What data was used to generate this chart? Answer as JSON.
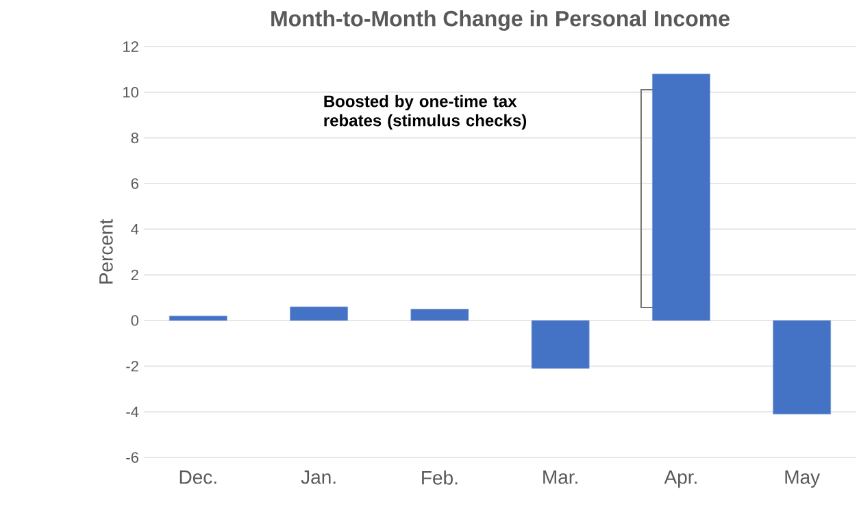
{
  "chart_data": {
    "type": "bar",
    "title": "Month-to-Month Change in Personal Income",
    "ylabel": "Percent",
    "categories": [
      "Dec.",
      "Jan.",
      "Feb.",
      "Mar.",
      "Apr.",
      "May"
    ],
    "values": [
      0.2,
      0.6,
      0.5,
      -2.1,
      10.8,
      -4.1
    ],
    "color": "#4472c4",
    "ylim": [
      -6,
      12
    ],
    "yticks": [
      -6,
      -4,
      -2,
      0,
      2,
      4,
      6,
      8,
      10,
      12
    ],
    "grid": "y",
    "annotations": [
      "Boosted by one-time tax rebates (stimulus checks)"
    ]
  }
}
